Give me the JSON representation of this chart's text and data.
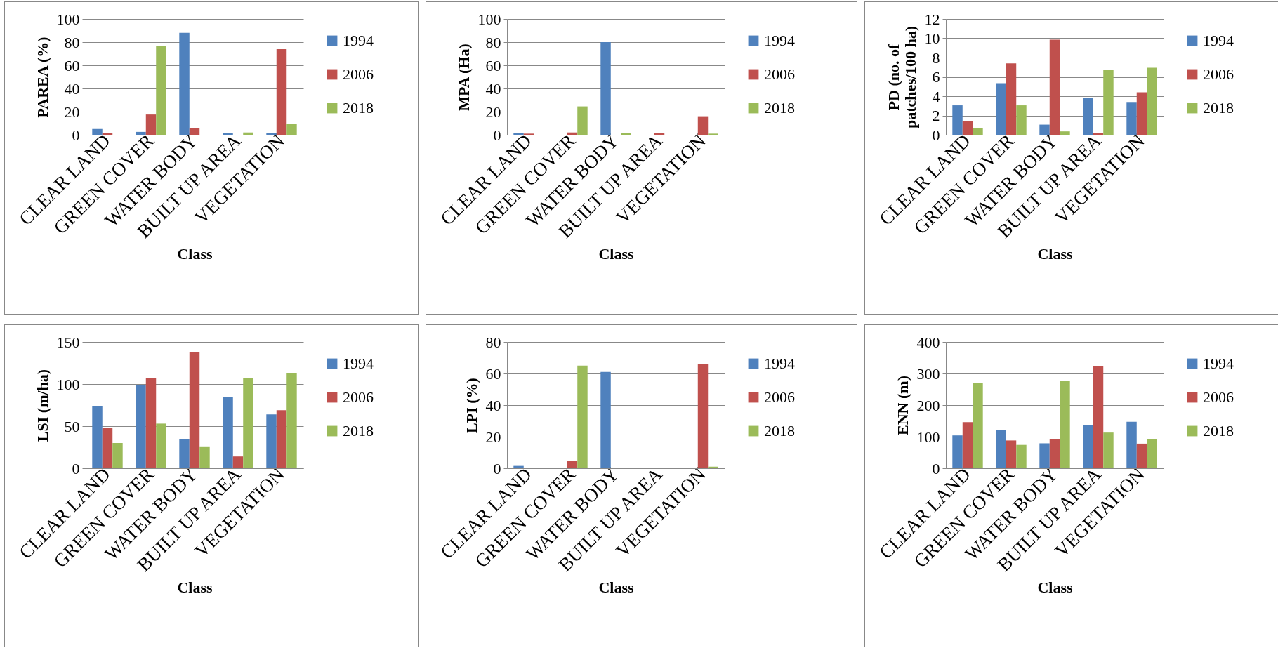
{
  "chart_data": [
    {
      "type": "bar",
      "ylabel": "PAREA (%)",
      "xlabel": "Class",
      "categories": [
        "CLEAR LAND",
        "GREEN COVER",
        "WATER BODY",
        "BUILT UP AREA",
        "VEGETATION"
      ],
      "ylim": [
        0,
        100
      ],
      "yticks": [
        0,
        20,
        40,
        60,
        80,
        100
      ],
      "grid": "y",
      "legend": "right",
      "series": [
        {
          "name": "1994",
          "color": "#4f81bd",
          "values": [
            5,
            2.5,
            88,
            1.5,
            1.5
          ]
        },
        {
          "name": "2006",
          "color": "#c0504d",
          "values": [
            1.5,
            17.5,
            6,
            null,
            74
          ]
        },
        {
          "name": "2018",
          "color": "#9bbb59",
          "values": [
            null,
            77,
            null,
            2,
            9.5
          ]
        }
      ]
    },
    {
      "type": "bar",
      "ylabel": "MPA (Ha)",
      "xlabel": "Class",
      "categories": [
        "CLEAR LAND",
        "GREEN COVER",
        "WATER BODY",
        "BUILT UP AREA",
        "VEGETATION"
      ],
      "ylim": [
        0,
        100
      ],
      "yticks": [
        0,
        20,
        40,
        60,
        80,
        100
      ],
      "grid": "y",
      "legend": "right",
      "series": [
        {
          "name": "1994",
          "color": "#4f81bd",
          "values": [
            1.5,
            null,
            80,
            null,
            null
          ]
        },
        {
          "name": "2006",
          "color": "#c0504d",
          "values": [
            1,
            2,
            null,
            1.5,
            16
          ]
        },
        {
          "name": "2018",
          "color": "#9bbb59",
          "values": [
            null,
            24.5,
            1.5,
            null,
            1
          ]
        }
      ]
    },
    {
      "type": "bar",
      "ylabel": "PD (no. of patches/100 ha)",
      "xlabel": "Class",
      "categories": [
        "CLEAR LAND",
        "GREEN COVER",
        "WATER BODY",
        "BUILT UP AREA",
        "VEGETATION"
      ],
      "ylim": [
        0,
        12
      ],
      "yticks": [
        0,
        2,
        4,
        6,
        8,
        10,
        12
      ],
      "grid": "y",
      "legend": "right",
      "series": [
        {
          "name": "1994",
          "color": "#4f81bd",
          "values": [
            3.05,
            5.35,
            1.05,
            3.8,
            3.4
          ]
        },
        {
          "name": "2006",
          "color": "#c0504d",
          "values": [
            1.45,
            7.4,
            9.85,
            0.15,
            4.4
          ]
        },
        {
          "name": "2018",
          "color": "#9bbb59",
          "values": [
            0.7,
            3.05,
            0.35,
            6.7,
            6.95
          ]
        }
      ]
    },
    {
      "type": "bar",
      "ylabel": "LSI (m/ha)",
      "xlabel": "Class",
      "categories": [
        "CLEAR LAND",
        "GREEN COVER",
        "WATER BODY",
        "BUILT UP AREA",
        "VEGETATION"
      ],
      "ylim": [
        0,
        150
      ],
      "yticks": [
        0,
        50,
        100,
        150
      ],
      "grid": "y",
      "legend": "right",
      "series": [
        {
          "name": "1994",
          "color": "#4f81bd",
          "values": [
            74,
            99,
            35,
            85,
            64
          ]
        },
        {
          "name": "2006",
          "color": "#c0504d",
          "values": [
            48,
            107,
            138,
            14,
            69
          ]
        },
        {
          "name": "2018",
          "color": "#9bbb59",
          "values": [
            30,
            53,
            26,
            107,
            113
          ]
        }
      ]
    },
    {
      "type": "bar",
      "ylabel": "LPI (%)",
      "xlabel": "Class",
      "categories": [
        "CLEAR LAND",
        "GREEN COVER",
        "WATER BODY",
        "BUILT UP AREA",
        "VEGETATION"
      ],
      "ylim": [
        0,
        80
      ],
      "yticks": [
        0,
        20,
        40,
        60,
        80
      ],
      "grid": "y",
      "legend": "right",
      "series": [
        {
          "name": "1994",
          "color": "#4f81bd",
          "values": [
            1.5,
            null,
            61,
            null,
            null
          ]
        },
        {
          "name": "2006",
          "color": "#c0504d",
          "values": [
            null,
            4.5,
            null,
            null,
            66
          ]
        },
        {
          "name": "2018",
          "color": "#9bbb59",
          "values": [
            null,
            65,
            null,
            null,
            1
          ]
        }
      ]
    },
    {
      "type": "bar",
      "ylabel": "ENN (m)",
      "xlabel": "Class",
      "categories": [
        "CLEAR LAND",
        "GREEN COVER",
        "WATER BODY",
        "BUILT UP AREA",
        "VEGETATION"
      ],
      "ylim": [
        0,
        400
      ],
      "yticks": [
        0,
        100,
        200,
        300,
        400
      ],
      "grid": "y",
      "legend": "right",
      "series": [
        {
          "name": "1994",
          "color": "#4f81bd",
          "values": [
            104,
            122,
            79,
            137,
            147
          ]
        },
        {
          "name": "2006",
          "color": "#c0504d",
          "values": [
            146,
            88,
            93,
            322,
            78
          ]
        },
        {
          "name": "2018",
          "color": "#9bbb59",
          "values": [
            271,
            74,
            277,
            113,
            92
          ]
        }
      ]
    }
  ]
}
